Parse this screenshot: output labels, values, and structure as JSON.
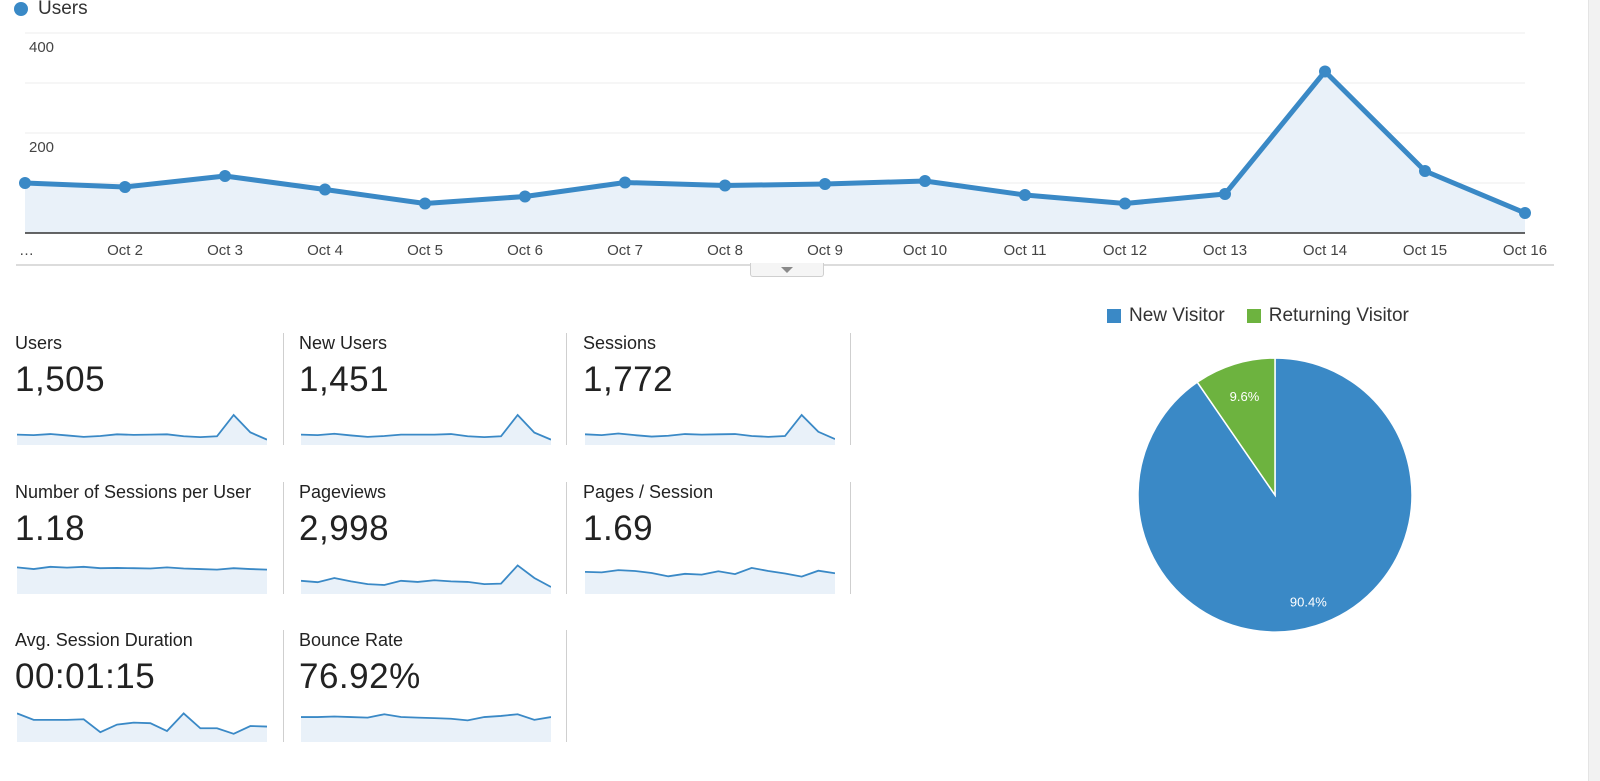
{
  "colors": {
    "accent": "#3a89c6",
    "fill": "#e9f1f9",
    "new_visitor": "#3a89c6",
    "returning_visitor": "#6db33f"
  },
  "overview": {
    "legend_label": "Users",
    "chart_data": {
      "type": "line",
      "series": [
        {
          "name": "Users",
          "values": [
            100,
            92,
            114,
            87,
            59,
            73,
            101,
            95,
            98,
            104,
            76,
            59,
            78,
            323,
            124,
            40
          ]
        }
      ],
      "categories": [
        "…",
        "Oct 2",
        "Oct 3",
        "Oct 4",
        "Oct 5",
        "Oct 6",
        "Oct 7",
        "Oct 8",
        "Oct 9",
        "Oct 10",
        "Oct 11",
        "Oct 12",
        "Oct 13",
        "Oct 14",
        "Oct 15",
        "Oct 16"
      ],
      "y_ticks": [
        "200",
        "400"
      ],
      "ylim": [
        0,
        400
      ],
      "grid": true,
      "area_fill": true
    }
  },
  "metrics": [
    {
      "label": "Users",
      "value": "1,505",
      "spark": [
        0.3,
        0.28,
        0.32,
        0.27,
        0.22,
        0.25,
        0.31,
        0.29,
        0.3,
        0.31,
        0.24,
        0.21,
        0.24,
        1.0,
        0.38,
        0.12
      ]
    },
    {
      "label": "New Users",
      "value": "1,451",
      "spark": [
        0.3,
        0.28,
        0.33,
        0.27,
        0.22,
        0.25,
        0.3,
        0.3,
        0.3,
        0.32,
        0.24,
        0.21,
        0.24,
        1.0,
        0.37,
        0.12
      ]
    },
    {
      "label": "Sessions",
      "value": "1,772",
      "spark": [
        0.31,
        0.28,
        0.34,
        0.28,
        0.23,
        0.26,
        0.32,
        0.3,
        0.31,
        0.32,
        0.25,
        0.22,
        0.25,
        1.0,
        0.4,
        0.14
      ]
    },
    {
      "label": "Number of Sessions per User",
      "value": "1.18",
      "spark": [
        0.88,
        0.82,
        0.9,
        0.87,
        0.9,
        0.85,
        0.86,
        0.85,
        0.84,
        0.88,
        0.84,
        0.82,
        0.8,
        0.85,
        0.82,
        0.8
      ]
    },
    {
      "label": "Pageviews",
      "value": "2,998",
      "spark": [
        0.4,
        0.35,
        0.5,
        0.38,
        0.28,
        0.25,
        0.4,
        0.36,
        0.42,
        0.38,
        0.36,
        0.28,
        0.3,
        0.95,
        0.5,
        0.18
      ]
    },
    {
      "label": "Pages / Session",
      "value": "1.69",
      "spark": [
        0.72,
        0.7,
        0.78,
        0.75,
        0.68,
        0.56,
        0.65,
        0.62,
        0.74,
        0.64,
        0.86,
        0.75,
        0.66,
        0.55,
        0.76,
        0.67
      ]
    },
    {
      "label": "Avg. Session Duration",
      "value": "00:01:15",
      "spark": [
        0.95,
        0.72,
        0.72,
        0.72,
        0.74,
        0.28,
        0.55,
        0.62,
        0.6,
        0.32,
        0.95,
        0.42,
        0.42,
        0.22,
        0.5,
        0.48
      ]
    },
    {
      "label": "Bounce Rate",
      "value": "76.92%",
      "spark": [
        0.82,
        0.82,
        0.84,
        0.82,
        0.8,
        0.92,
        0.82,
        0.8,
        0.78,
        0.76,
        0.7,
        0.82,
        0.86,
        0.92,
        0.72,
        0.82
      ]
    }
  ],
  "pie": {
    "legend": [
      {
        "label": "New Visitor"
      },
      {
        "label": "Returning Visitor"
      }
    ],
    "chart_data": {
      "type": "pie",
      "slices": [
        {
          "label": "New Visitor",
          "value": 90.4,
          "display": "90.4%"
        },
        {
          "label": "Returning Visitor",
          "value": 9.6,
          "display": "9.6%"
        }
      ]
    }
  }
}
